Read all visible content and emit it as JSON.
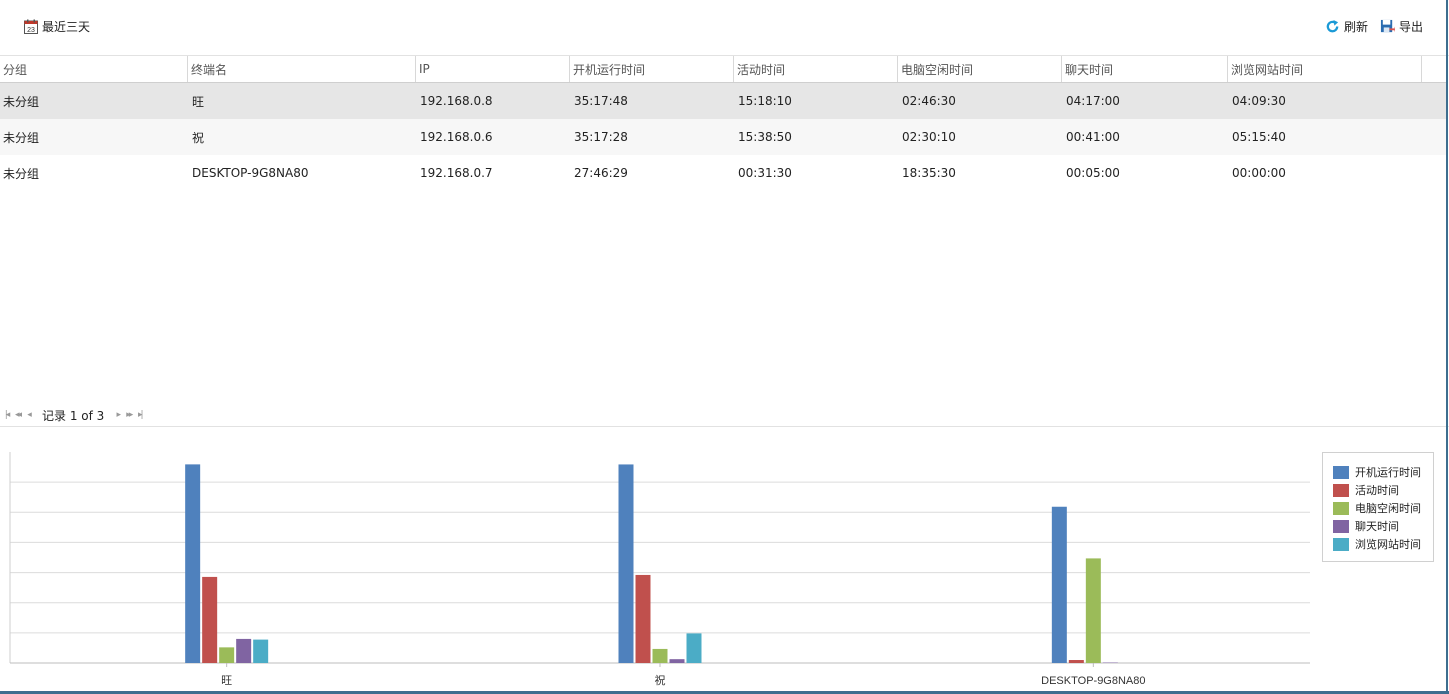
{
  "toolbar": {
    "date_range_label": "最近三天",
    "calendar_icon_day": "23",
    "refresh_label": "刷新",
    "export_label": "导出"
  },
  "table": {
    "columns": [
      "分组",
      "终端名",
      "IP",
      "开机运行时间",
      "活动时间",
      "电脑空闲时间",
      "聊天时间",
      "浏览网站时间"
    ],
    "rows": [
      [
        "未分组",
        "旺",
        "192.168.0.8",
        "35:17:48",
        "15:18:10",
        "02:46:30",
        "04:17:00",
        "04:09:30"
      ],
      [
        "未分组",
        "祝",
        "192.168.0.6",
        "35:17:28",
        "15:38:50",
        "02:30:10",
        "00:41:00",
        "05:15:40"
      ],
      [
        "未分组",
        "DESKTOP-9G8NA80",
        "192.168.0.7",
        "27:46:29",
        "00:31:30",
        "18:35:30",
        "00:05:00",
        "00:00:00"
      ]
    ]
  },
  "pager": {
    "text": "记录 1 of 3"
  },
  "colors": {
    "uptime": "#4f81bd",
    "active": "#c0504d",
    "idle": "#9bbb59",
    "chat": "#8064a2",
    "browse": "#4bacc6"
  },
  "chart_data": {
    "type": "bar",
    "categories": [
      "旺",
      "祝",
      "DESKTOP-9G8NA80"
    ],
    "ylim": [
      0,
      37.5
    ],
    "grid": true,
    "legend_position": "right",
    "series": [
      {
        "name": "开机运行时间",
        "values": [
          35.3,
          35.29,
          27.77
        ]
      },
      {
        "name": "活动时间",
        "values": [
          15.3,
          15.65,
          0.53
        ]
      },
      {
        "name": "电脑空闲时间",
        "values": [
          2.78,
          2.5,
          18.59
        ]
      },
      {
        "name": "聊天时间",
        "values": [
          4.28,
          0.68,
          0.08
        ]
      },
      {
        "name": "浏览网站时间",
        "values": [
          4.16,
          5.26,
          0.0
        ]
      }
    ]
  }
}
